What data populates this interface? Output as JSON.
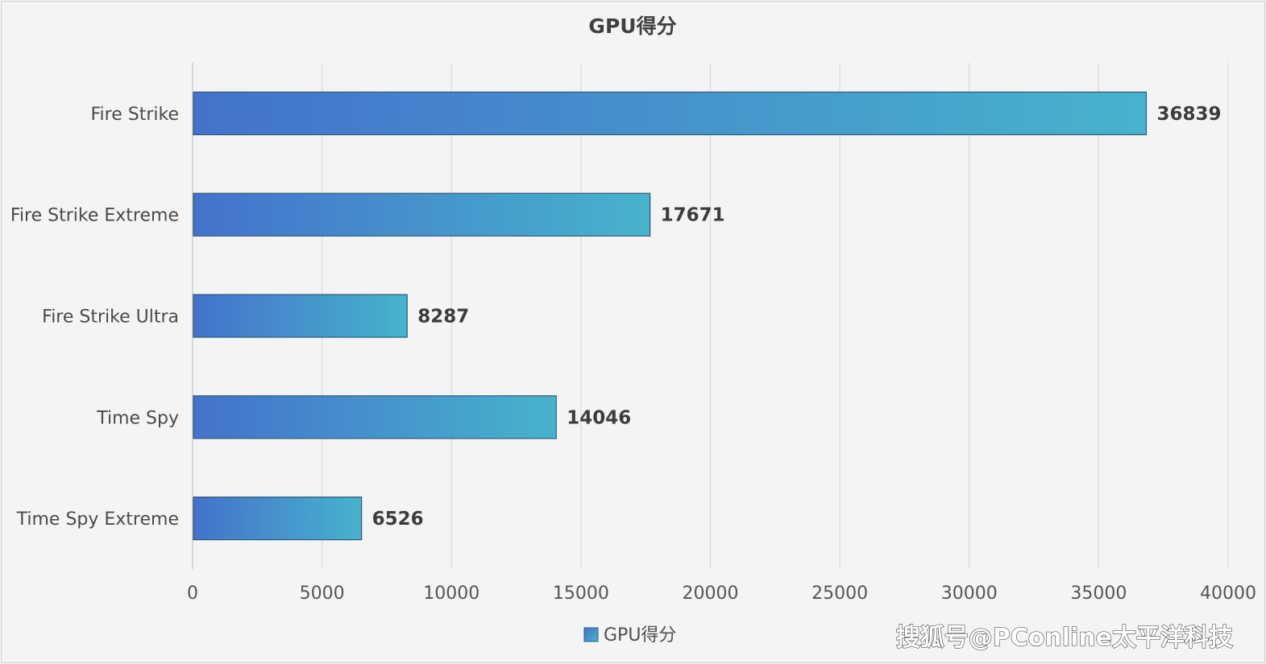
{
  "chart_data": {
    "type": "bar",
    "orientation": "horizontal",
    "title": "GPU得分",
    "categories": [
      "Fire Strike",
      "Fire Strike Extreme",
      "Fire Strike Ultra",
      "Time Spy",
      "Time Spy Extreme"
    ],
    "series": [
      {
        "name": "GPU得分",
        "values": [
          36839,
          17671,
          8287,
          14046,
          6526
        ]
      }
    ],
    "xlim": [
      0,
      40000
    ],
    "xticks": [
      0,
      5000,
      10000,
      15000,
      20000,
      25000,
      30000,
      35000,
      40000
    ],
    "grid": true,
    "legend": "bottom",
    "colors": {
      "bar_start": "#4472cc",
      "bar_end": "#47b3cc",
      "bar_stroke": "#2e5a78"
    }
  },
  "watermark": "搜狐号@PConline太平洋科技"
}
